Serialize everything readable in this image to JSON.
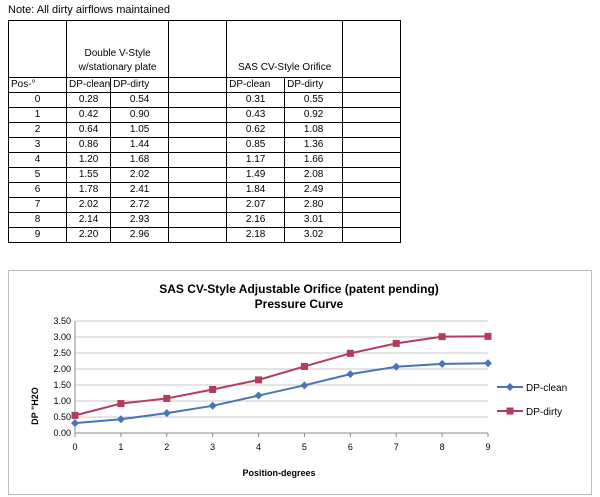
{
  "note": "Note: All dirty airflows maintained",
  "table": {
    "group1": "Double V-Style w/stationary plate",
    "group2": "SAS CV-Style Orifice",
    "pos_header": "Pos-°",
    "g1_clean_header": "DP-clean",
    "g1_dirty_header": "DP-dirty",
    "g2_clean_header": "DP-clean",
    "g2_dirty_header": "DP-dirty",
    "rows": [
      {
        "pos": "0",
        "g1_clean": "0.28",
        "g1_dirty": "0.54",
        "g2_clean": "0.31",
        "g2_dirty": "0.55"
      },
      {
        "pos": "1",
        "g1_clean": "0.42",
        "g1_dirty": "0.90",
        "g2_clean": "0.43",
        "g2_dirty": "0.92"
      },
      {
        "pos": "2",
        "g1_clean": "0.64",
        "g1_dirty": "1.05",
        "g2_clean": "0.62",
        "g2_dirty": "1.08"
      },
      {
        "pos": "3",
        "g1_clean": "0.86",
        "g1_dirty": "1.44",
        "g2_clean": "0.85",
        "g2_dirty": "1.36"
      },
      {
        "pos": "4",
        "g1_clean": "1.20",
        "g1_dirty": "1.68",
        "g2_clean": "1.17",
        "g2_dirty": "1.66"
      },
      {
        "pos": "5",
        "g1_clean": "1.55",
        "g1_dirty": "2.02",
        "g2_clean": "1.49",
        "g2_dirty": "2.08"
      },
      {
        "pos": "6",
        "g1_clean": "1.78",
        "g1_dirty": "2.41",
        "g2_clean": "1.84",
        "g2_dirty": "2.49"
      },
      {
        "pos": "7",
        "g1_clean": "2.02",
        "g1_dirty": "2.72",
        "g2_clean": "2.07",
        "g2_dirty": "2.80"
      },
      {
        "pos": "8",
        "g1_clean": "2.14",
        "g1_dirty": "2.93",
        "g2_clean": "2.16",
        "g2_dirty": "3.01"
      },
      {
        "pos": "9",
        "g1_clean": "2.20",
        "g1_dirty": "2.96",
        "g2_clean": "2.18",
        "g2_dirty": "3.02"
      }
    ]
  },
  "chart_data": {
    "type": "line",
    "title": "SAS CV-Style Adjustable Orifice (patent pending)",
    "subtitle": "Pressure Curve",
    "xlabel": "Position-degrees",
    "ylabel": "DP \"H2O",
    "x": [
      0,
      1,
      2,
      3,
      4,
      5,
      6,
      7,
      8,
      9
    ],
    "x_ticks": [
      "0",
      "1",
      "2",
      "3",
      "4",
      "5",
      "6",
      "7",
      "8",
      "9"
    ],
    "xlim": [
      0,
      9
    ],
    "ylim": [
      0,
      3.5
    ],
    "y_ticks": [
      "0.00",
      "0.50",
      "1.00",
      "1.50",
      "2.00",
      "2.50",
      "3.00",
      "3.50"
    ],
    "grid": "horizontal",
    "legend_position": "right",
    "series": [
      {
        "name": "DP-clean",
        "color": "#4a72b8",
        "marker": "diamond",
        "values": [
          0.31,
          0.43,
          0.62,
          0.85,
          1.17,
          1.49,
          1.84,
          2.07,
          2.16,
          2.18
        ]
      },
      {
        "name": "DP-dirty",
        "color": "#b23c5a",
        "marker": "square",
        "values": [
          0.55,
          0.92,
          1.08,
          1.36,
          1.66,
          2.08,
          2.49,
          2.8,
          3.01,
          3.02
        ]
      }
    ]
  }
}
